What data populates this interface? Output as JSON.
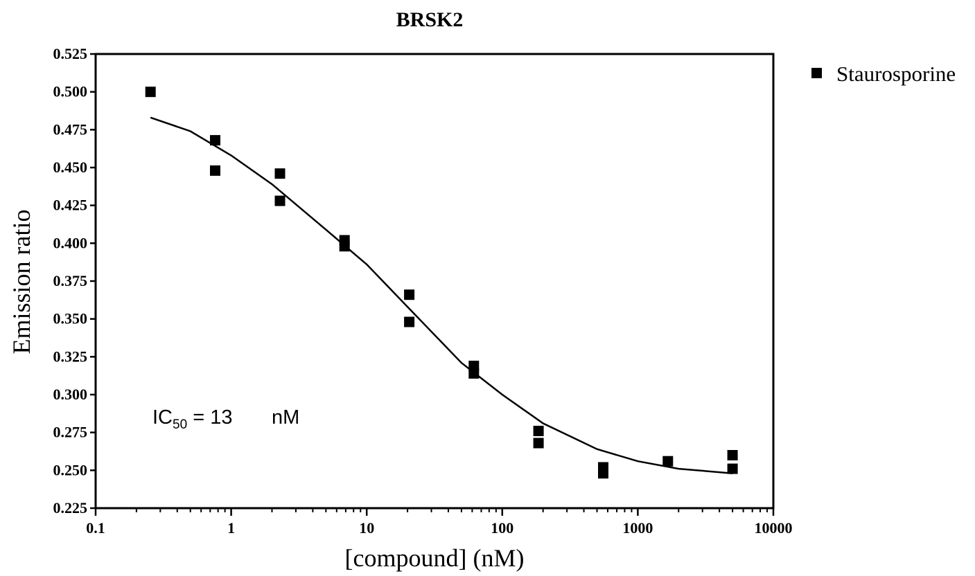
{
  "chart_data": {
    "type": "scatter",
    "title": "BRSK2",
    "xlabel": "[compound] (nM)",
    "ylabel": "Emission ratio",
    "x_scale": "log",
    "xlim": [
      0.1,
      10000
    ],
    "ylim": [
      0.225,
      0.525
    ],
    "x_tick_labels": [
      "0.1",
      "1",
      "10",
      "100",
      "1000",
      "10000"
    ],
    "y_tick_labels": [
      "0.225",
      "0.250",
      "0.275",
      "0.300",
      "0.325",
      "0.350",
      "0.375",
      "0.400",
      "0.425",
      "0.450",
      "0.475",
      "0.500",
      "0.525"
    ],
    "legend": {
      "position": "top-right",
      "entries": [
        "Staurosporine"
      ]
    },
    "annotation": {
      "prefix": "IC",
      "subscript": "50",
      "value": " = 13",
      "unit": "nM"
    },
    "series": [
      {
        "name": "Staurosporine",
        "marker": "square",
        "color": "#000000",
        "points": [
          [
            0.254,
            0.5
          ],
          [
            0.762,
            0.468
          ],
          [
            0.762,
            0.448
          ],
          [
            2.29,
            0.446
          ],
          [
            2.29,
            0.428
          ],
          [
            6.86,
            0.402
          ],
          [
            6.86,
            0.398
          ],
          [
            20.6,
            0.366
          ],
          [
            20.6,
            0.348
          ],
          [
            61.7,
            0.319
          ],
          [
            61.7,
            0.314
          ],
          [
            185,
            0.276
          ],
          [
            185,
            0.268
          ],
          [
            556,
            0.252
          ],
          [
            556,
            0.248
          ],
          [
            1667,
            0.256
          ],
          [
            5000,
            0.26
          ],
          [
            5000,
            0.251
          ]
        ]
      }
    ],
    "fit_curve": {
      "x": [
        0.254,
        0.5,
        1,
        2,
        5,
        10,
        20,
        50,
        100,
        200,
        500,
        1000,
        2000,
        5000
      ],
      "y": [
        0.483,
        0.474,
        0.458,
        0.439,
        0.409,
        0.386,
        0.358,
        0.321,
        0.3,
        0.281,
        0.264,
        0.256,
        0.251,
        0.248
      ]
    }
  }
}
